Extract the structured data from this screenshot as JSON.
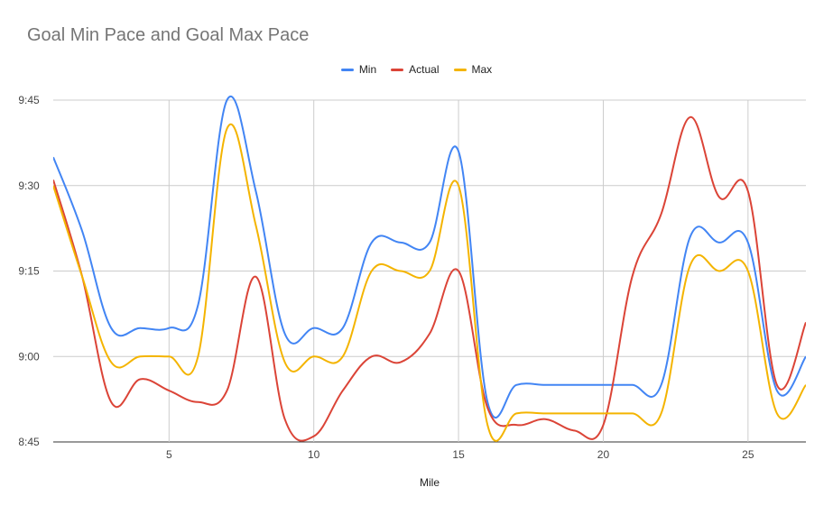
{
  "chart_data": {
    "type": "line",
    "title": "Goal Min Pace and Goal Max Pace",
    "xlabel": "Mile",
    "ylabel": "",
    "x": [
      1,
      2,
      3,
      4,
      5,
      6,
      7,
      8,
      9,
      10,
      11,
      12,
      13,
      14,
      15,
      16,
      17,
      18,
      19,
      20,
      21,
      22,
      23,
      24,
      25,
      26,
      27
    ],
    "x_ticks": [
      5,
      10,
      15,
      20,
      25
    ],
    "xlim": [
      1,
      27
    ],
    "y_ticks": [
      "8:45",
      "9:00",
      "9:15",
      "9:30",
      "9:45"
    ],
    "ylim_seconds": [
      525,
      585
    ],
    "grid": true,
    "legend_position": "top",
    "series": [
      {
        "name": "Min",
        "color": "#4285f4",
        "values_seconds": [
          575,
          562,
          545,
          545,
          545,
          549,
          585,
          569,
          544,
          545,
          545,
          560,
          560,
          560,
          576,
          532,
          535,
          535,
          535,
          535,
          535,
          535,
          561,
          560,
          560,
          534,
          540
        ]
      },
      {
        "name": "Actual",
        "color": "#db4437",
        "values_seconds": [
          571,
          554,
          532,
          536,
          534,
          532,
          534,
          554,
          529,
          526,
          534,
          540,
          539,
          544,
          555,
          531,
          528,
          529,
          527,
          528,
          554,
          565,
          582,
          568,
          569,
          535,
          546
        ]
      },
      {
        "name": "Max",
        "color": "#f4b400",
        "values_seconds": [
          570,
          554,
          539,
          540,
          540,
          540,
          580,
          563,
          539,
          540,
          540,
          555,
          555,
          555,
          570,
          528,
          530,
          530,
          530,
          530,
          530,
          530,
          556,
          555,
          555,
          530,
          535
        ]
      }
    ]
  }
}
